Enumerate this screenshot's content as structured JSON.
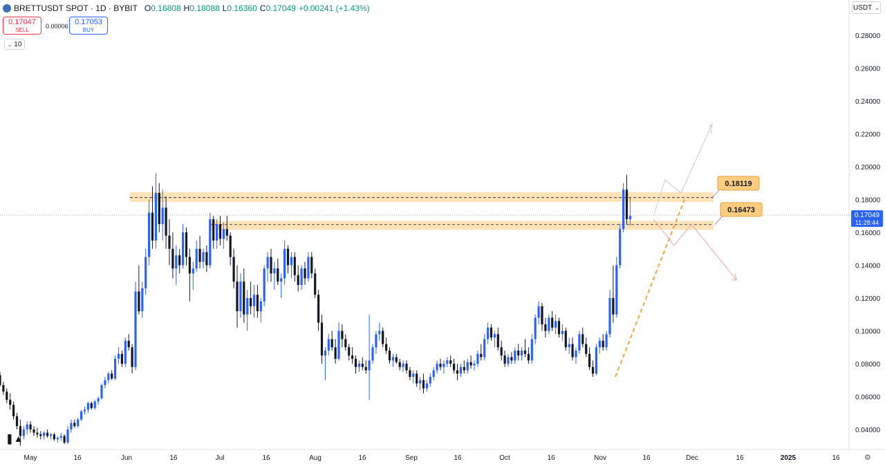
{
  "header": {
    "symbol": "BRETTUSDT SPOT · 1D · BYBIT",
    "open_label": "O",
    "open": "0.16808",
    "high_label": "H",
    "high": "0.18088",
    "low_label": "L",
    "low": "0.16360",
    "close_label": "C",
    "close": "0.17049",
    "change": "+0.00241 (+1.43%)"
  },
  "trade": {
    "sell_price": "0.17047",
    "sell_label": "SELL",
    "spread": "0.00006",
    "buy_price": "0.17053",
    "buy_label": "BUY",
    "quantity": "10"
  },
  "currency": "USDT",
  "colors": {
    "up": "#2962ff",
    "down": "#131722",
    "zone": "#ffcc80",
    "trend": "#f7a545"
  },
  "chart_data": {
    "type": "candlestick",
    "y_ticks": [
      "0.28000",
      "0.26000",
      "0.24000",
      "0.22000",
      "0.20000",
      "0.18000",
      "0.16000",
      "0.14000",
      "0.12000",
      "0.10000",
      "0.08000",
      "0.06000",
      "0.04000"
    ],
    "x_ticks": [
      "May",
      "16",
      "Jun",
      "16",
      "Jul",
      "16",
      "Aug",
      "16",
      "Sep",
      "16",
      "Oct",
      "16",
      "Nov",
      "16",
      "Dec",
      "16",
      "2025",
      "16"
    ],
    "ylim": [
      0.03,
      0.29
    ],
    "last_price": "0.17049",
    "countdown": "11:28:44",
    "levels": [
      {
        "label": "0.18119",
        "value": 0.18119
      },
      {
        "label": "0.16473",
        "value": 0.16473
      }
    ],
    "zones": [
      {
        "from": 0.1785,
        "to": 0.1845
      },
      {
        "from": 0.1615,
        "to": 0.167
      }
    ],
    "candles": [
      [
        0.073,
        0.075,
        0.066,
        0.067
      ],
      [
        0.067,
        0.069,
        0.061,
        0.063
      ],
      [
        0.063,
        0.065,
        0.056,
        0.058
      ],
      [
        0.058,
        0.062,
        0.052,
        0.055
      ],
      [
        0.055,
        0.057,
        0.046,
        0.048
      ],
      [
        0.048,
        0.05,
        0.04,
        0.042
      ],
      [
        0.042,
        0.046,
        0.03,
        0.036
      ],
      [
        0.036,
        0.042,
        0.034,
        0.04
      ],
      [
        0.04,
        0.045,
        0.037,
        0.043
      ],
      [
        0.043,
        0.045,
        0.038,
        0.04
      ],
      [
        0.04,
        0.042,
        0.036,
        0.038
      ],
      [
        0.038,
        0.041,
        0.035,
        0.037
      ],
      [
        0.037,
        0.039,
        0.034,
        0.036
      ],
      [
        0.036,
        0.039,
        0.034,
        0.038
      ],
      [
        0.038,
        0.04,
        0.035,
        0.036
      ],
      [
        0.036,
        0.038,
        0.034,
        0.037
      ],
      [
        0.037,
        0.038,
        0.033,
        0.034
      ],
      [
        0.034,
        0.036,
        0.032,
        0.035
      ],
      [
        0.035,
        0.038,
        0.033,
        0.036
      ],
      [
        0.036,
        0.037,
        0.031,
        0.032
      ],
      [
        0.032,
        0.042,
        0.031,
        0.04
      ],
      [
        0.04,
        0.046,
        0.038,
        0.044
      ],
      [
        0.044,
        0.046,
        0.041,
        0.042
      ],
      [
        0.042,
        0.047,
        0.041,
        0.046
      ],
      [
        0.046,
        0.052,
        0.045,
        0.051
      ],
      [
        0.051,
        0.054,
        0.049,
        0.052
      ],
      [
        0.052,
        0.057,
        0.05,
        0.056
      ],
      [
        0.056,
        0.057,
        0.052,
        0.053
      ],
      [
        0.053,
        0.058,
        0.052,
        0.057
      ],
      [
        0.057,
        0.06,
        0.055,
        0.059
      ],
      [
        0.059,
        0.068,
        0.058,
        0.067
      ],
      [
        0.067,
        0.072,
        0.065,
        0.07
      ],
      [
        0.07,
        0.075,
        0.068,
        0.074
      ],
      [
        0.074,
        0.076,
        0.07,
        0.071
      ],
      [
        0.071,
        0.085,
        0.07,
        0.083
      ],
      [
        0.083,
        0.09,
        0.08,
        0.086
      ],
      [
        0.086,
        0.088,
        0.078,
        0.08
      ],
      [
        0.08,
        0.096,
        0.078,
        0.094
      ],
      [
        0.094,
        0.098,
        0.088,
        0.09
      ],
      [
        0.09,
        0.092,
        0.074,
        0.078
      ],
      [
        0.078,
        0.13,
        0.076,
        0.124
      ],
      [
        0.124,
        0.14,
        0.11,
        0.112
      ],
      [
        0.112,
        0.13,
        0.108,
        0.126
      ],
      [
        0.126,
        0.15,
        0.122,
        0.145
      ],
      [
        0.145,
        0.18,
        0.14,
        0.172
      ],
      [
        0.172,
        0.188,
        0.15,
        0.155
      ],
      [
        0.155,
        0.196,
        0.15,
        0.184
      ],
      [
        0.184,
        0.19,
        0.16,
        0.165
      ],
      [
        0.165,
        0.186,
        0.155,
        0.175
      ],
      [
        0.175,
        0.182,
        0.15,
        0.158
      ],
      [
        0.158,
        0.168,
        0.14,
        0.15
      ],
      [
        0.15,
        0.16,
        0.132,
        0.138
      ],
      [
        0.138,
        0.152,
        0.128,
        0.146
      ],
      [
        0.146,
        0.15,
        0.135,
        0.14
      ],
      [
        0.14,
        0.165,
        0.138,
        0.16
      ],
      [
        0.16,
        0.163,
        0.14,
        0.145
      ],
      [
        0.145,
        0.15,
        0.118,
        0.135
      ],
      [
        0.135,
        0.142,
        0.125,
        0.138
      ],
      [
        0.138,
        0.155,
        0.136,
        0.15
      ],
      [
        0.15,
        0.158,
        0.138,
        0.142
      ],
      [
        0.142,
        0.15,
        0.138,
        0.148
      ],
      [
        0.148,
        0.152,
        0.136,
        0.14
      ],
      [
        0.14,
        0.172,
        0.138,
        0.168
      ],
      [
        0.168,
        0.17,
        0.15,
        0.155
      ],
      [
        0.155,
        0.168,
        0.15,
        0.165
      ],
      [
        0.165,
        0.17,
        0.152,
        0.156
      ],
      [
        0.156,
        0.166,
        0.15,
        0.162
      ],
      [
        0.162,
        0.17,
        0.155,
        0.158
      ],
      [
        0.158,
        0.16,
        0.14,
        0.145
      ],
      [
        0.145,
        0.15,
        0.126,
        0.13
      ],
      [
        0.13,
        0.14,
        0.102,
        0.112
      ],
      [
        0.112,
        0.135,
        0.108,
        0.13
      ],
      [
        0.13,
        0.138,
        0.105,
        0.11
      ],
      [
        0.11,
        0.125,
        0.1,
        0.12
      ],
      [
        0.12,
        0.13,
        0.11,
        0.115
      ],
      [
        0.115,
        0.128,
        0.108,
        0.122
      ],
      [
        0.122,
        0.128,
        0.108,
        0.112
      ],
      [
        0.112,
        0.12,
        0.105,
        0.118
      ],
      [
        0.118,
        0.14,
        0.115,
        0.138
      ],
      [
        0.138,
        0.148,
        0.13,
        0.145
      ],
      [
        0.145,
        0.15,
        0.13,
        0.135
      ],
      [
        0.135,
        0.142,
        0.125,
        0.138
      ],
      [
        0.138,
        0.144,
        0.128,
        0.13
      ],
      [
        0.13,
        0.135,
        0.12,
        0.132
      ],
      [
        0.132,
        0.155,
        0.128,
        0.15
      ],
      [
        0.15,
        0.152,
        0.135,
        0.14
      ],
      [
        0.14,
        0.148,
        0.132,
        0.145
      ],
      [
        0.145,
        0.148,
        0.13,
        0.134
      ],
      [
        0.134,
        0.14,
        0.124,
        0.128
      ],
      [
        0.128,
        0.14,
        0.125,
        0.138
      ],
      [
        0.138,
        0.142,
        0.128,
        0.132
      ],
      [
        0.132,
        0.148,
        0.13,
        0.145
      ],
      [
        0.145,
        0.148,
        0.132,
        0.135
      ],
      [
        0.135,
        0.138,
        0.12,
        0.122
      ],
      [
        0.122,
        0.125,
        0.1,
        0.105
      ],
      [
        0.105,
        0.11,
        0.08,
        0.085
      ],
      [
        0.085,
        0.09,
        0.07,
        0.088
      ],
      [
        0.088,
        0.098,
        0.085,
        0.095
      ],
      [
        0.095,
        0.1,
        0.088,
        0.09
      ],
      [
        0.09,
        0.095,
        0.08,
        0.083
      ],
      [
        0.083,
        0.105,
        0.082,
        0.1
      ],
      [
        0.1,
        0.104,
        0.09,
        0.095
      ],
      [
        0.095,
        0.098,
        0.088,
        0.09
      ],
      [
        0.09,
        0.092,
        0.082,
        0.085
      ],
      [
        0.085,
        0.09,
        0.08,
        0.083
      ],
      [
        0.083,
        0.085,
        0.074,
        0.078
      ],
      [
        0.078,
        0.082,
        0.075,
        0.08
      ],
      [
        0.08,
        0.084,
        0.076,
        0.078
      ],
      [
        0.078,
        0.082,
        0.074,
        0.076
      ],
      [
        0.076,
        0.11,
        0.058,
        0.082
      ],
      [
        0.082,
        0.092,
        0.08,
        0.09
      ],
      [
        0.09,
        0.1,
        0.086,
        0.098
      ],
      [
        0.098,
        0.105,
        0.094,
        0.1
      ],
      [
        0.1,
        0.102,
        0.09,
        0.092
      ],
      [
        0.092,
        0.096,
        0.086,
        0.088
      ],
      [
        0.088,
        0.09,
        0.08,
        0.082
      ],
      [
        0.082,
        0.086,
        0.078,
        0.084
      ],
      [
        0.084,
        0.086,
        0.08,
        0.081
      ],
      [
        0.081,
        0.083,
        0.076,
        0.078
      ],
      [
        0.078,
        0.082,
        0.075,
        0.08
      ],
      [
        0.08,
        0.082,
        0.074,
        0.076
      ],
      [
        0.076,
        0.078,
        0.07,
        0.072
      ],
      [
        0.072,
        0.076,
        0.068,
        0.074
      ],
      [
        0.074,
        0.076,
        0.066,
        0.068
      ],
      [
        0.068,
        0.072,
        0.064,
        0.07
      ],
      [
        0.07,
        0.074,
        0.062,
        0.065
      ],
      [
        0.065,
        0.07,
        0.063,
        0.068
      ],
      [
        0.068,
        0.074,
        0.066,
        0.072
      ],
      [
        0.072,
        0.078,
        0.07,
        0.076
      ],
      [
        0.076,
        0.082,
        0.074,
        0.08
      ],
      [
        0.08,
        0.083,
        0.076,
        0.078
      ],
      [
        0.078,
        0.082,
        0.074,
        0.08
      ],
      [
        0.08,
        0.084,
        0.078,
        0.082
      ],
      [
        0.082,
        0.085,
        0.078,
        0.08
      ],
      [
        0.08,
        0.083,
        0.074,
        0.076
      ],
      [
        0.076,
        0.08,
        0.07,
        0.074
      ],
      [
        0.074,
        0.08,
        0.072,
        0.078
      ],
      [
        0.078,
        0.082,
        0.074,
        0.076
      ],
      [
        0.076,
        0.083,
        0.074,
        0.081
      ],
      [
        0.081,
        0.085,
        0.077,
        0.079
      ],
      [
        0.079,
        0.082,
        0.076,
        0.08
      ],
      [
        0.08,
        0.088,
        0.078,
        0.086
      ],
      [
        0.086,
        0.092,
        0.082,
        0.084
      ],
      [
        0.084,
        0.098,
        0.082,
        0.095
      ],
      [
        0.095,
        0.105,
        0.092,
        0.102
      ],
      [
        0.102,
        0.104,
        0.094,
        0.096
      ],
      [
        0.096,
        0.1,
        0.09,
        0.098
      ],
      [
        0.098,
        0.102,
        0.088,
        0.09
      ],
      [
        0.09,
        0.094,
        0.082,
        0.085
      ],
      [
        0.085,
        0.088,
        0.078,
        0.08
      ],
      [
        0.08,
        0.086,
        0.078,
        0.084
      ],
      [
        0.084,
        0.087,
        0.08,
        0.082
      ],
      [
        0.082,
        0.09,
        0.08,
        0.088
      ],
      [
        0.088,
        0.092,
        0.082,
        0.085
      ],
      [
        0.085,
        0.09,
        0.082,
        0.088
      ],
      [
        0.088,
        0.095,
        0.084,
        0.086
      ],
      [
        0.086,
        0.09,
        0.08,
        0.082
      ],
      [
        0.082,
        0.098,
        0.08,
        0.095
      ],
      [
        0.095,
        0.11,
        0.092,
        0.108
      ],
      [
        0.108,
        0.118,
        0.104,
        0.115
      ],
      [
        0.115,
        0.117,
        0.1,
        0.104
      ],
      [
        0.104,
        0.108,
        0.096,
        0.1
      ],
      [
        0.1,
        0.11,
        0.098,
        0.108
      ],
      [
        0.108,
        0.112,
        0.1,
        0.102
      ],
      [
        0.102,
        0.11,
        0.098,
        0.106
      ],
      [
        0.106,
        0.108,
        0.096,
        0.098
      ],
      [
        0.098,
        0.104,
        0.094,
        0.1
      ],
      [
        0.1,
        0.102,
        0.088,
        0.09
      ],
      [
        0.09,
        0.096,
        0.086,
        0.092
      ],
      [
        0.092,
        0.096,
        0.082,
        0.084
      ],
      [
        0.084,
        0.09,
        0.08,
        0.088
      ],
      [
        0.088,
        0.1,
        0.086,
        0.098
      ],
      [
        0.098,
        0.102,
        0.09,
        0.092
      ],
      [
        0.092,
        0.096,
        0.084,
        0.086
      ],
      [
        0.086,
        0.09,
        0.076,
        0.078
      ],
      [
        0.078,
        0.082,
        0.072,
        0.074
      ],
      [
        0.074,
        0.092,
        0.073,
        0.09
      ],
      [
        0.09,
        0.096,
        0.086,
        0.094
      ],
      [
        0.094,
        0.098,
        0.088,
        0.09
      ],
      [
        0.09,
        0.1,
        0.088,
        0.098
      ],
      [
        0.098,
        0.125,
        0.096,
        0.12
      ],
      [
        0.12,
        0.14,
        0.105,
        0.11
      ],
      [
        0.11,
        0.145,
        0.108,
        0.14
      ],
      [
        0.14,
        0.165,
        0.138,
        0.162
      ],
      [
        0.162,
        0.19,
        0.16,
        0.186
      ],
      [
        0.186,
        0.195,
        0.165,
        0.168
      ],
      [
        0.168,
        0.181,
        0.164,
        0.17
      ]
    ]
  }
}
